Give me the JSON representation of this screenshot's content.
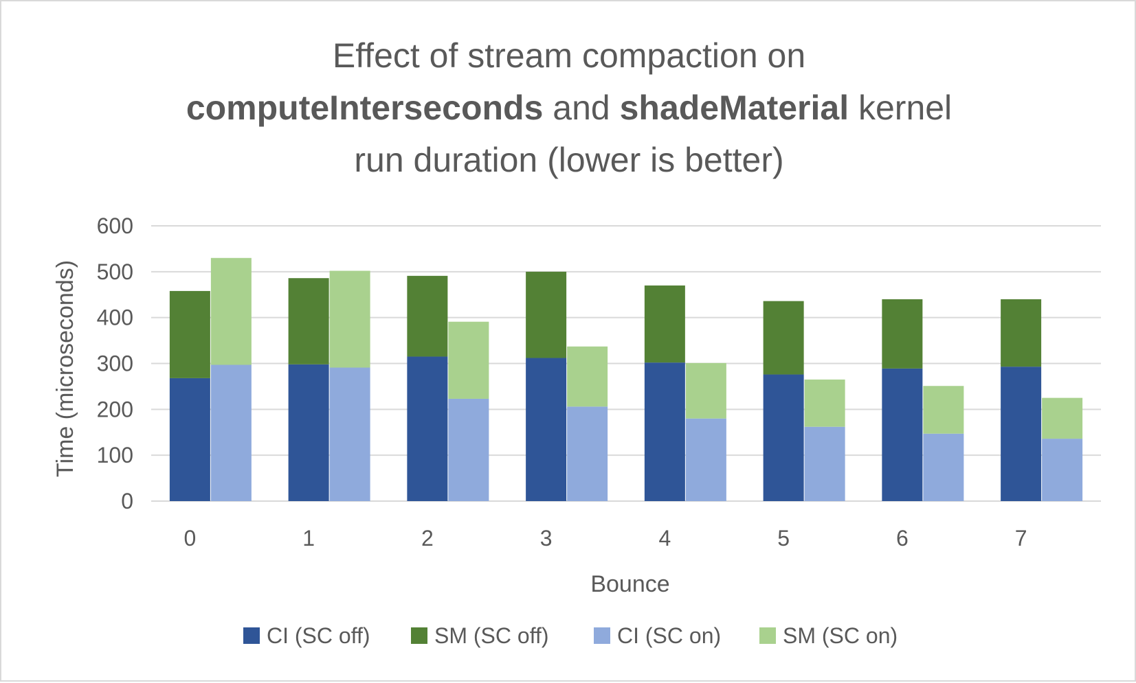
{
  "chart_data": {
    "type": "bar",
    "stacked": true,
    "title": {
      "line1": "Effect of stream compaction on",
      "line2_bold_1": "computeInterseconds",
      "line2_mid": " and ",
      "line2_bold_2": "shadeMaterial",
      "line2_end": " kernel",
      "line3": "run duration (lower is better)"
    },
    "xlabel": "Bounce",
    "ylabel": "Time (microseconds)",
    "ylim": [
      0,
      600
    ],
    "yticks": [
      "0",
      "100",
      "200",
      "300",
      "400",
      "500",
      "600"
    ],
    "grid": true,
    "legend_position": "bottom",
    "categories": [
      "0",
      "1",
      "2",
      "3",
      "4",
      "5",
      "6",
      "7"
    ],
    "stacks": [
      {
        "name": "SC off",
        "series": [
          {
            "name": "CI (SC off)",
            "color": "#2f5597",
            "values": [
              268,
              298,
              315,
              312,
              302,
              276,
              289,
              293
            ]
          },
          {
            "name": "SM (SC off)",
            "color": "#538135",
            "values": [
              190,
              188,
              176,
              188,
              168,
              160,
              151,
              147
            ]
          }
        ]
      },
      {
        "name": "SC on",
        "series": [
          {
            "name": "CI (SC on)",
            "color": "#8faadc",
            "values": [
              297,
              291,
              223,
              206,
              180,
              162,
              147,
              136
            ]
          },
          {
            "name": "SM (SC on)",
            "color": "#a9d18e",
            "values": [
              233,
              211,
              168,
              131,
              121,
              103,
              104,
              89
            ]
          }
        ]
      }
    ],
    "legend": [
      "CI (SC off)",
      "SM (SC off)",
      "CI (SC on)",
      "SM (SC on)"
    ]
  }
}
